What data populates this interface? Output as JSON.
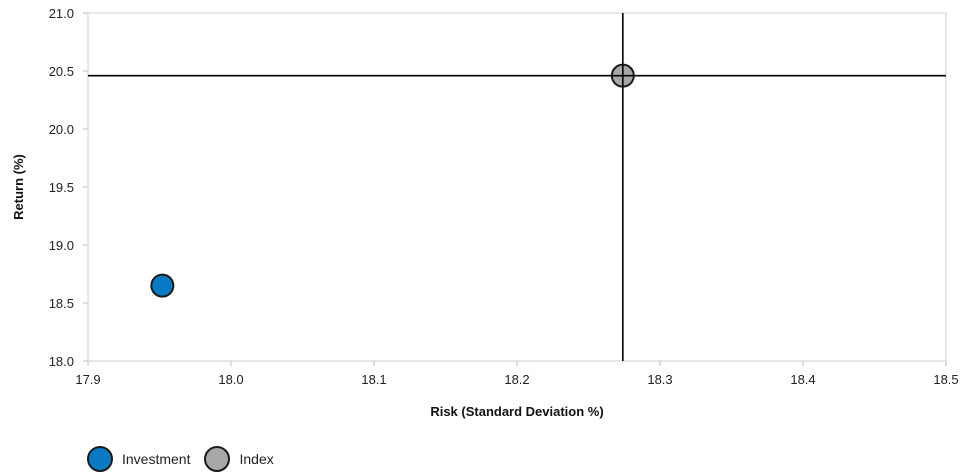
{
  "chart_data": {
    "type": "scatter",
    "xlabel": "Risk (Standard Deviation %)",
    "ylabel": "Return (%)",
    "xlim": [
      17.9,
      18.5
    ],
    "ylim": [
      18.0,
      21.0
    ],
    "x_ticks": [
      "17.9",
      "18.0",
      "18.1",
      "18.2",
      "18.3",
      "18.4",
      "18.5"
    ],
    "y_ticks": [
      "18.0",
      "18.5",
      "19.0",
      "19.5",
      "20.0",
      "20.5",
      "21.0"
    ],
    "grid": false,
    "legend_position": "bottom-left",
    "crosshair_at": "Index",
    "series": [
      {
        "name": "Investment",
        "x": 17.952,
        "y": 18.65,
        "color": "#0a7ac5"
      },
      {
        "name": "Index",
        "x": 18.274,
        "y": 20.46,
        "color": "#a8a8a8"
      }
    ]
  },
  "legend": {
    "items": [
      {
        "label": "Investment",
        "color": "#0a7ac5"
      },
      {
        "label": "Index",
        "color": "#a8a8a8"
      }
    ]
  }
}
